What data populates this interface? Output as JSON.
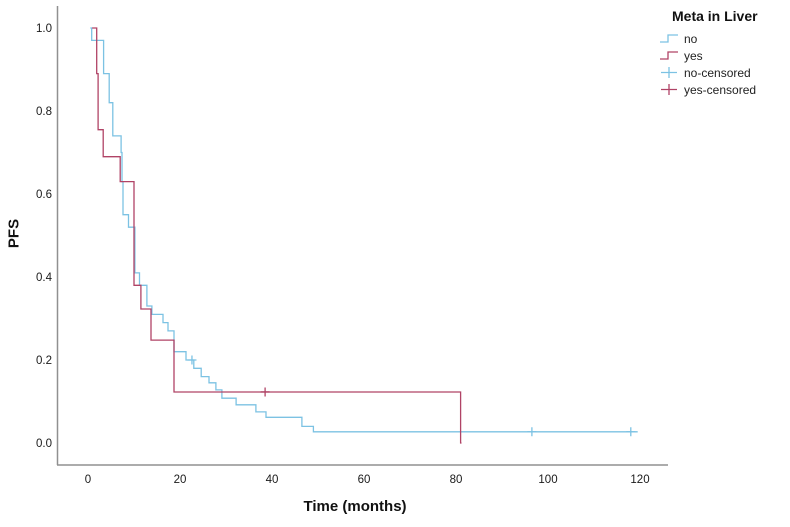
{
  "figure": {
    "y_axis_title": "PFS",
    "x_axis_title": "Time (months)"
  },
  "legend": {
    "title": "Meta in Liver",
    "items": [
      {
        "label": "no",
        "glyph": "step-line",
        "color": "#7cc2e3"
      },
      {
        "label": "yes",
        "glyph": "step-line",
        "color": "#b04366"
      },
      {
        "label": "no-censored",
        "glyph": "plus",
        "color": "#7cc2e3"
      },
      {
        "label": "yes-censored",
        "glyph": "plus",
        "color": "#b04366"
      }
    ]
  },
  "chart_data": {
    "type": "line",
    "subtype": "kaplan-meier-step",
    "title": "",
    "xlabel": "Time (months)",
    "ylabel": "PFS",
    "xlim": [
      0,
      120
    ],
    "ylim": [
      0.0,
      1.0
    ],
    "x_ticks": [
      "0",
      "20",
      "40",
      "60",
      "80",
      "100",
      "120"
    ],
    "x_tick_values": [
      0,
      20,
      40,
      60,
      80,
      100,
      120
    ],
    "y_ticks": [
      "1.0",
      "0.8",
      "0.6",
      "0.4",
      "0.2",
      "0.0"
    ],
    "y_tick_values": [
      1.0,
      0.8,
      0.6,
      0.4,
      0.2,
      0.0
    ],
    "grid": false,
    "legend_position": "right-top",
    "axis_color": "#909090",
    "series": [
      {
        "name": "no",
        "color": "#7cc2e3",
        "steps": [
          [
            0.5,
            1.0
          ],
          [
            0.8,
            0.97
          ],
          [
            3.4,
            0.89
          ],
          [
            4.6,
            0.82
          ],
          [
            5.4,
            0.74
          ],
          [
            7.2,
            0.7
          ],
          [
            7.4,
            0.63
          ],
          [
            7.6,
            0.55
          ],
          [
            8.8,
            0.52
          ],
          [
            10.2,
            0.41
          ],
          [
            11.2,
            0.38
          ],
          [
            12.8,
            0.33
          ],
          [
            13.9,
            0.31
          ],
          [
            16.3,
            0.29
          ],
          [
            17.4,
            0.27
          ],
          [
            18.7,
            0.22
          ],
          [
            21.3,
            0.2
          ],
          [
            23.0,
            0.18
          ],
          [
            24.6,
            0.16
          ],
          [
            26.3,
            0.145
          ],
          [
            27.8,
            0.128
          ],
          [
            29.1,
            0.108
          ],
          [
            32.2,
            0.092
          ],
          [
            36.5,
            0.075
          ],
          [
            38.7,
            0.062
          ],
          [
            46.5,
            0.04
          ],
          [
            49.0,
            0.027
          ]
        ],
        "end_time": 119.5,
        "censored": [
          [
            22.6,
            0.2
          ],
          [
            96.5,
            0.027
          ],
          [
            118.0,
            0.027
          ]
        ]
      },
      {
        "name": "yes",
        "color": "#b04366",
        "steps": [
          [
            0.9,
            1.0
          ],
          [
            1.9,
            0.89
          ],
          [
            2.2,
            0.755
          ],
          [
            3.3,
            0.69
          ],
          [
            7.0,
            0.63
          ],
          [
            10.0,
            0.38
          ],
          [
            11.5,
            0.323
          ],
          [
            13.7,
            0.248
          ],
          [
            18.7,
            0.123
          ],
          [
            81.0,
            0.0
          ]
        ],
        "end_time": 81.2,
        "censored": [
          [
            38.5,
            0.123
          ]
        ]
      }
    ]
  }
}
